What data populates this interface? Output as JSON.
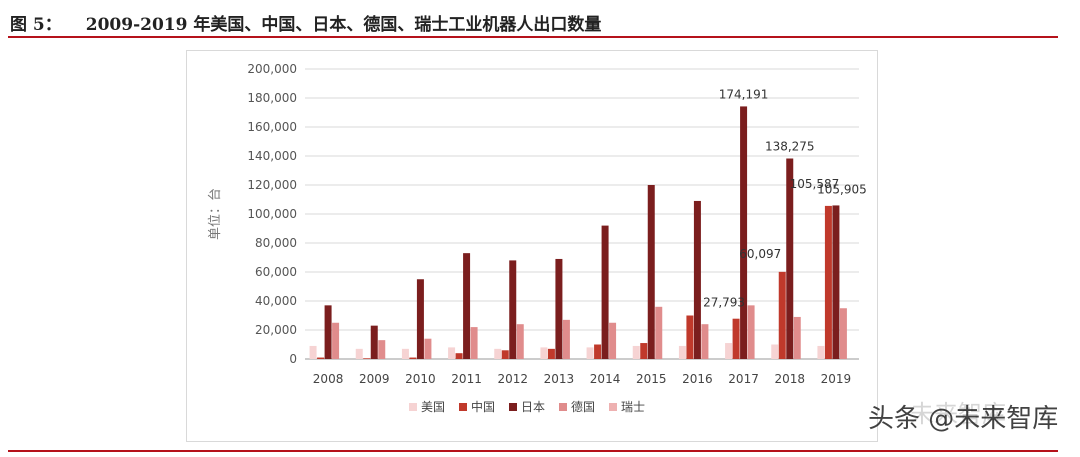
{
  "figure": {
    "label": "图 5：",
    "title": "2009-2019 年美国、中国、日本、德国、瑞士工业机器人出口数量"
  },
  "watermark": {
    "text": "头条 @未来智库",
    "faded_text": "未来智库"
  },
  "colors": {
    "rule": "#b5121b",
    "us": "#f6d3d3",
    "cn": "#c0392b",
    "jp": "#7b1e1e",
    "de": "#e08c8c",
    "ch": "#eeb1b1"
  },
  "chart_data": {
    "type": "bar",
    "ylabel": "单位：台",
    "ylim": [
      0,
      200000
    ],
    "yticks": [
      0,
      20000,
      40000,
      60000,
      80000,
      100000,
      120000,
      140000,
      160000,
      180000,
      200000
    ],
    "ytick_labels": [
      "0",
      "20,000",
      "40,000",
      "60,000",
      "80,000",
      "100,000",
      "120,000",
      "140,000",
      "160,000",
      "180,000",
      "200,000"
    ],
    "grid": true,
    "legend_position": "bottom",
    "categories": [
      "2008",
      "2009",
      "2010",
      "2011",
      "2012",
      "2013",
      "2014",
      "2015",
      "2016",
      "2017",
      "2018",
      "2019"
    ],
    "series": [
      {
        "name": "美国",
        "color": "#f6d3d3",
        "values": [
          9000,
          7000,
          7000,
          8000,
          7000,
          8000,
          8000,
          9000,
          9000,
          11000,
          10000,
          9000
        ]
      },
      {
        "name": "中国",
        "color": "#c0392b",
        "values": [
          1000,
          500,
          1000,
          4000,
          6000,
          7000,
          10000,
          11000,
          30000,
          27793,
          60097,
          105587
        ]
      },
      {
        "name": "日本",
        "color": "#7b1e1e",
        "values": [
          37000,
          23000,
          55000,
          73000,
          68000,
          69000,
          92000,
          120000,
          109000,
          174191,
          138275,
          105905
        ]
      },
      {
        "name": "德国",
        "color": "#e08c8c",
        "values": [
          25000,
          13000,
          14000,
          22000,
          24000,
          27000,
          25000,
          36000,
          24000,
          37000,
          29000,
          35000
        ]
      },
      {
        "name": "瑞士",
        "color": "#eeb1b1",
        "values": [
          0,
          0,
          0,
          0,
          0,
          0,
          0,
          0,
          0,
          0,
          0,
          0
        ]
      }
    ],
    "annotations": [
      {
        "category": "2017",
        "series": "日本",
        "text": "174,191"
      },
      {
        "category": "2018",
        "series": "日本",
        "text": "138,275"
      },
      {
        "category": "2019",
        "series": "日本",
        "text": "105,905"
      },
      {
        "category": "2017",
        "series": "中国",
        "text": "27,793"
      },
      {
        "category": "2018",
        "series": "中国",
        "text": "60,097"
      },
      {
        "category": "2019",
        "series": "中国",
        "text": "105,587"
      }
    ]
  }
}
